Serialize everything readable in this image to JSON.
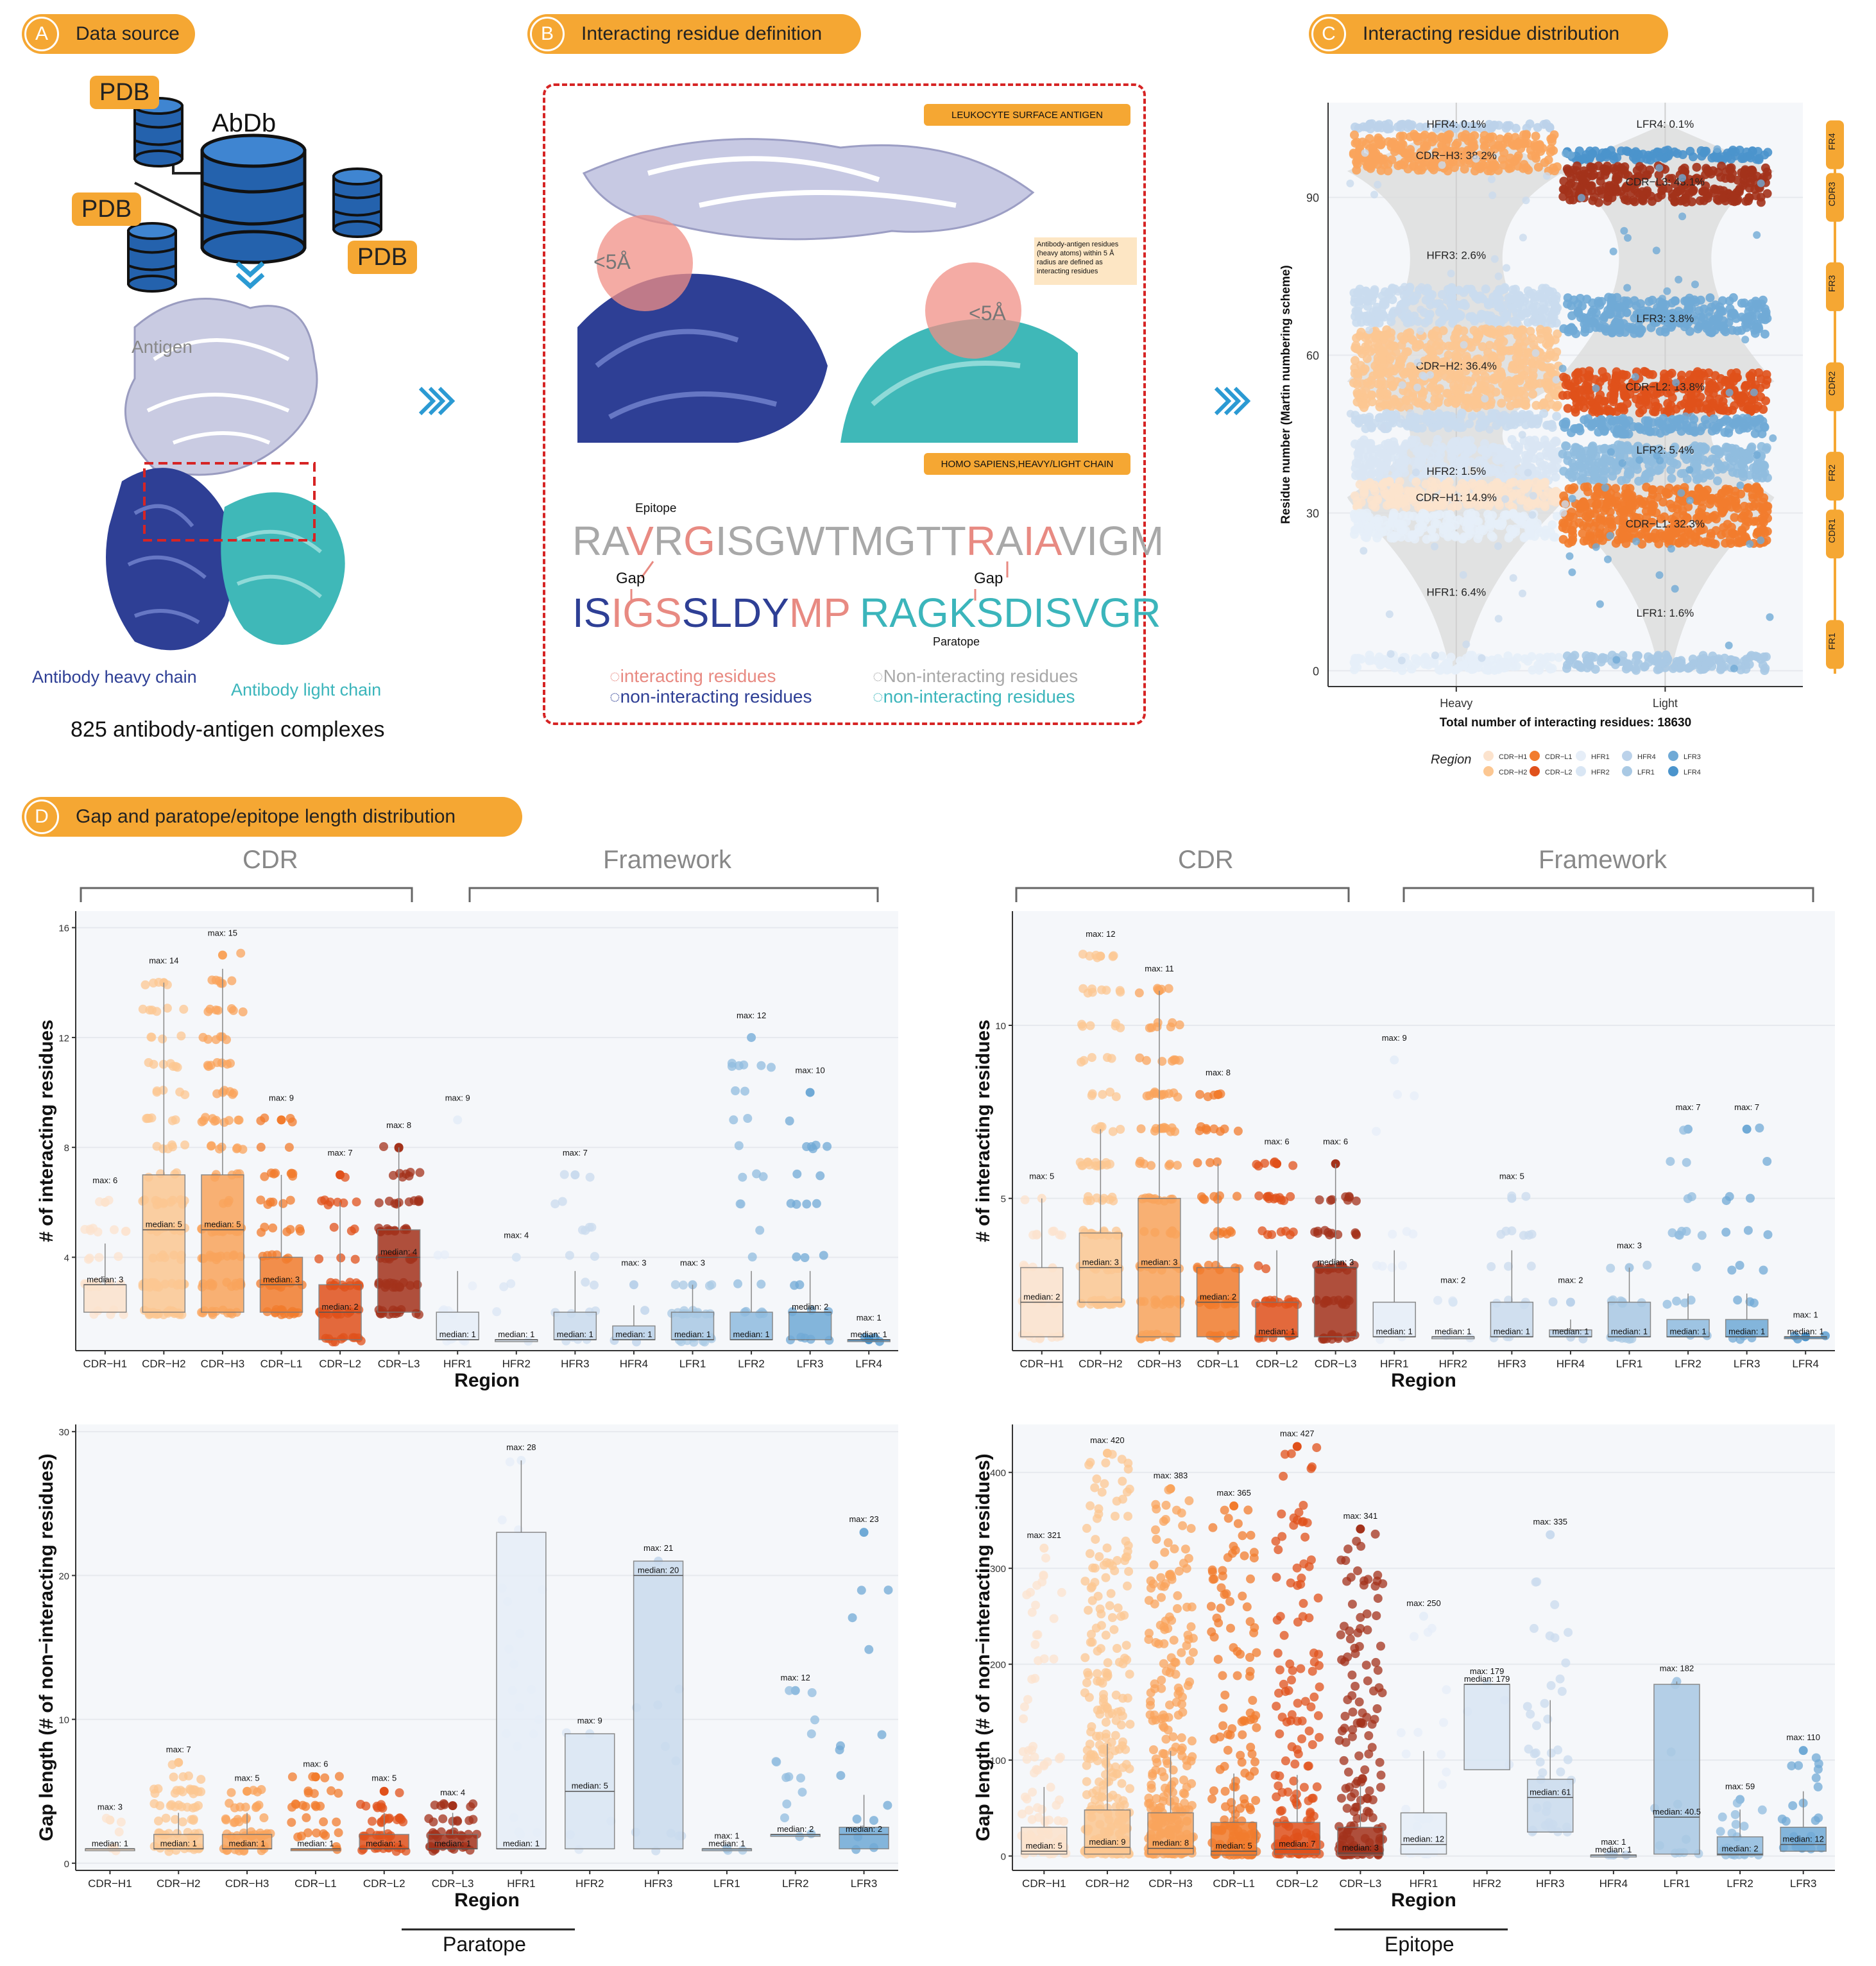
{
  "panel_a": {
    "badge_letter": "A",
    "badge_label": "Data source",
    "pdb_label": "PDB",
    "abdb_label": "AbDb",
    "antigen_label": "Antigen",
    "heavy_label": "Antibody heavy chain",
    "light_label": "Antibody light chain",
    "caption": "825 antibody-antigen complexes"
  },
  "panel_b": {
    "badge_letter": "B",
    "badge_label": "Interacting residue definition",
    "tag_top": "LEUKOCYTE SURFACE ANTIGEN",
    "tag_bottom": "HOMO SAPIENS,HEAVY/LIGHT CHAIN",
    "radius_label": "<5Å",
    "note": "Antibody-antigen residues (heavy atoms) within 5 Å radius are defined as interacting residues",
    "epitope_label": "Epitope",
    "gap_label": "Gap",
    "paratope_label": "Paratope",
    "antigen_seq": [
      {
        "t": "RA",
        "c": "#a8a8a8"
      },
      {
        "t": "V",
        "c": "#e88a82"
      },
      {
        "t": "R",
        "c": "#a8a8a8"
      },
      {
        "t": "G",
        "c": "#e88a82"
      },
      {
        "t": "ISGWTMGTT",
        "c": "#a8a8a8"
      },
      {
        "t": "R",
        "c": "#e88a82"
      },
      {
        "t": "A",
        "c": "#a8a8a8"
      },
      {
        "t": "I",
        "c": "#e88a82"
      },
      {
        "t": "A",
        "c": "#e88a82"
      },
      {
        "t": "VIGM",
        "c": "#a8a8a8"
      }
    ],
    "heavy_seq": [
      {
        "t": "IS",
        "c": "#2e3f95"
      },
      {
        "t": "IG",
        "c": "#e88a82"
      },
      {
        "t": "S",
        "c": "#e88a82"
      },
      {
        "t": "SLDY",
        "c": "#2e3f95"
      },
      {
        "t": "MP",
        "c": "#e88a82"
      }
    ],
    "light_seq": [
      {
        "t": "RAGKS",
        "c": "#3bb5bb"
      },
      {
        "t": "DISVGR",
        "c": "#3bb5bb"
      }
    ],
    "legend": [
      {
        "label": "interacting residues",
        "color": "#e88a82"
      },
      {
        "label": "non-interacting residues",
        "color": "#2e3f95"
      },
      {
        "label": "Non-interacting residues",
        "color": "#a8a8a8"
      },
      {
        "label": "non-interacting residues",
        "color": "#3bb5bb"
      }
    ]
  },
  "panel_c": {
    "badge_letter": "C",
    "badge_label": "Interacting residue distribution"
  },
  "panel_d": {
    "badge_letter": "D",
    "badge_label": "Gap and paratope/epitope length distribution",
    "cdr_header": "CDR",
    "framework_header": "Framework",
    "paratope_label": "Paratope",
    "epitope_label": "Epitope"
  },
  "colors": {
    "CDR-H1": "#fce3cd",
    "CDR-H2": "#fcc792",
    "CDR-H3": "#f9a45c",
    "CDR-L1": "#f27c2d",
    "CDR-L2": "#e0511b",
    "CDR-L3": "#a3321b",
    "HFR1": "#e6eef8",
    "HFR2": "#d9e6f4",
    "HFR3": "#cadbee",
    "HFR4": "#bbd2ea",
    "LFR1": "#a9c9e4",
    "LFR2": "#90bcdf",
    "LFR3": "#70aad6",
    "LFR4": "#4b94cc"
  },
  "chart_data": [
    {
      "type": "scatter",
      "id": "C",
      "title": "",
      "xlabel": "Total number of interacting residues: 18630",
      "ylabel": "Residue number (Martin numbering scheme)",
      "categories": [
        "Heavy",
        "Light"
      ],
      "ylim": [
        -3,
        108
      ],
      "yticks": [
        0,
        30,
        60,
        90
      ],
      "legend_title": "Region",
      "legend_position": "bottom",
      "legend_entries": [
        "CDR−H1",
        "CDR−H2",
        "CDR−H3",
        "CDR−L1",
        "CDR−L2",
        "CDR−L3",
        "HFR1",
        "HFR2",
        "HFR3",
        "HFR4",
        "LFR1",
        "LFR2",
        "LFR3",
        "LFR4"
      ],
      "side_labels": [
        "FR4",
        "CDR3",
        "FR3",
        "CDR2",
        "FR2",
        "CDR1",
        "FR1"
      ],
      "bands": [
        {
          "chain": "Heavy",
          "region": "HFR4",
          "y0": 103,
          "y1": 104,
          "label": "HFR4: 0.1%",
          "label_y": 104
        },
        {
          "chain": "Heavy",
          "region": "CDR-H3",
          "y0": 95,
          "y1": 102,
          "label": "CDR−H3: 38.2%",
          "label_y": 98
        },
        {
          "chain": "Heavy",
          "region": "HFR3",
          "y0": 66,
          "y1": 73,
          "label": "HFR3: 2.6%",
          "label_y": 79
        },
        {
          "chain": "Heavy",
          "region": "CDR-H2",
          "y0": 50,
          "y1": 65,
          "label": "CDR−H2: 36.4%",
          "label_y": 58
        },
        {
          "chain": "Heavy",
          "region": "HFR3",
          "y0": 46,
          "y1": 49,
          "label": "",
          "label_y": 0
        },
        {
          "chain": "Heavy",
          "region": "HFR2",
          "y0": 36,
          "y1": 44,
          "label": "HFR2: 1.5%",
          "label_y": 38
        },
        {
          "chain": "Heavy",
          "region": "CDR-H1",
          "y0": 31,
          "y1": 36,
          "label": "CDR−H1: 14.9%",
          "label_y": 33
        },
        {
          "chain": "Heavy",
          "region": "HFR1",
          "y0": 25,
          "y1": 30,
          "label": "HFR1: 6.4%",
          "label_y": 15
        },
        {
          "chain": "Heavy",
          "region": "HFR1",
          "y0": 0,
          "y1": 3,
          "label": "",
          "label_y": 0
        },
        {
          "chain": "Light",
          "region": "LFR4",
          "y0": 97,
          "y1": 99,
          "label": "LFR4: 0.1%",
          "label_y": 104
        },
        {
          "chain": "Light",
          "region": "CDR-L3",
          "y0": 89,
          "y1": 96,
          "label": "CDR−L3: 43.1%",
          "label_y": 93
        },
        {
          "chain": "Light",
          "region": "LFR3",
          "y0": 64,
          "y1": 71,
          "label": "LFR3: 3.8%",
          "label_y": 67
        },
        {
          "chain": "Light",
          "region": "CDR-L2",
          "y0": 49,
          "y1": 57,
          "label": "CDR−L2: 13.8%",
          "label_y": 54
        },
        {
          "chain": "Light",
          "region": "LFR3",
          "y0": 45,
          "y1": 48,
          "label": "",
          "label_y": 0
        },
        {
          "chain": "Light",
          "region": "LFR2",
          "y0": 36,
          "y1": 43,
          "label": "LFR2: 5.4%",
          "label_y": 42
        },
        {
          "chain": "Light",
          "region": "CDR-L1",
          "y0": 24,
          "y1": 35,
          "label": "CDR−L1: 32.3%",
          "label_y": 28
        },
        {
          "chain": "Light",
          "region": "LFR1",
          "y0": 0,
          "y1": 3,
          "label": "LFR1: 1.6%",
          "label_y": 11
        }
      ]
    },
    {
      "type": "box",
      "id": "D-paratope-count",
      "xlabel": "Region",
      "ylabel": "# of interacting residues",
      "ylim": [
        0.6,
        16.6
      ],
      "yticks": [
        4,
        8,
        12,
        16
      ],
      "categories": [
        "CDR−H1",
        "CDR−H2",
        "CDR−H3",
        "CDR−L1",
        "CDR−L2",
        "CDR−L3",
        "HFR1",
        "HFR2",
        "HFR3",
        "HFR4",
        "LFR1",
        "LFR2",
        "LFR3",
        "LFR4"
      ],
      "keys": [
        "CDR-H1",
        "CDR-H2",
        "CDR-H3",
        "CDR-L1",
        "CDR-L2",
        "CDR-L3",
        "HFR1",
        "HFR2",
        "HFR3",
        "HFR4",
        "LFR1",
        "LFR2",
        "LFR3",
        "LFR4"
      ],
      "median": [
        3,
        5,
        5,
        3,
        2,
        4,
        1,
        1,
        1,
        1,
        1,
        1,
        2,
        1
      ],
      "q1": [
        2,
        2,
        2,
        2,
        1,
        2,
        1,
        1,
        1,
        1,
        1,
        1,
        1,
        1
      ],
      "q3": [
        3,
        7,
        7,
        4,
        3,
        5,
        2,
        1,
        2,
        1.5,
        2,
        2,
        2,
        1
      ],
      "max": [
        6,
        14,
        15,
        9,
        7,
        8,
        9,
        4,
        7,
        3,
        3,
        12,
        10,
        1
      ]
    },
    {
      "type": "box",
      "id": "D-epitope-count",
      "xlabel": "Region",
      "ylabel": "# of interacting residues",
      "ylim": [
        0.6,
        13.3
      ],
      "yticks": [
        5,
        10
      ],
      "categories": [
        "CDR−H1",
        "CDR−H2",
        "CDR−H3",
        "CDR−L1",
        "CDR−L2",
        "CDR−L3",
        "HFR1",
        "HFR2",
        "HFR3",
        "HFR4",
        "LFR1",
        "LFR2",
        "LFR3",
        "LFR4"
      ],
      "keys": [
        "CDR-H1",
        "CDR-H2",
        "CDR-H3",
        "CDR-L1",
        "CDR-L2",
        "CDR-L3",
        "HFR1",
        "HFR2",
        "HFR3",
        "HFR4",
        "LFR1",
        "LFR2",
        "LFR3",
        "LFR4"
      ],
      "median": [
        2,
        3,
        3,
        2,
        1,
        3,
        1,
        1,
        1,
        1,
        1,
        1,
        1,
        1
      ],
      "q1": [
        1,
        2,
        1,
        1,
        1,
        1,
        1,
        1,
        1,
        1,
        1,
        1,
        1,
        1
      ],
      "q3": [
        3,
        4,
        5,
        3,
        2,
        3,
        2,
        1,
        2,
        1.2,
        2,
        1.5,
        1.5,
        1
      ],
      "max": [
        5,
        12,
        11,
        8,
        6,
        6,
        9,
        2,
        5,
        2,
        3,
        7,
        7,
        1
      ]
    },
    {
      "type": "box",
      "id": "D-paratope-gap",
      "xlabel": "Region",
      "ylabel": "Gap length (# of non−interacting residues)",
      "ylim": [
        -0.5,
        30.5
      ],
      "yticks": [
        0,
        10,
        20,
        30
      ],
      "categories": [
        "CDR−H1",
        "CDR−H2",
        "CDR−H3",
        "CDR−L1",
        "CDR−L2",
        "CDR−L3",
        "HFR1",
        "HFR2",
        "HFR3",
        "LFR1",
        "LFR2",
        "LFR3"
      ],
      "keys": [
        "CDR-H1",
        "CDR-H2",
        "CDR-H3",
        "CDR-L1",
        "CDR-L2",
        "CDR-L3",
        "HFR1",
        "HFR2",
        "HFR3",
        "LFR1",
        "LFR2",
        "LFR3"
      ],
      "median": [
        1,
        1,
        1,
        1,
        1,
        1,
        1,
        5,
        20,
        1,
        2,
        2
      ],
      "median_label": [
        "1",
        "1",
        "1",
        "1",
        "1",
        "1",
        "1",
        "5",
        "20",
        "1",
        "2",
        "2"
      ],
      "q1": [
        1,
        1,
        1,
        1,
        1,
        1,
        1,
        1,
        1,
        1,
        2,
        1
      ],
      "q3": [
        1,
        2,
        2,
        1,
        2,
        2,
        23,
        9,
        21,
        1,
        2,
        2.5
      ],
      "max": [
        3,
        7,
        5,
        6,
        5,
        4,
        28,
        9,
        21,
        1,
        12,
        23
      ]
    },
    {
      "type": "box",
      "id": "D-epitope-gap",
      "xlabel": "Region",
      "ylabel": "Gap length (# of non−interacting residues)",
      "ylim": [
        -15,
        450
      ],
      "yticks": [
        0,
        100,
        200,
        300,
        400
      ],
      "categories": [
        "CDR−H1",
        "CDR−H2",
        "CDR−H3",
        "CDR−L1",
        "CDR−L2",
        "CDR−L3",
        "HFR1",
        "HFR2",
        "HFR3",
        "HFR4",
        "LFR1",
        "LFR2",
        "LFR3"
      ],
      "keys": [
        "CDR-H1",
        "CDR-H2",
        "CDR-H3",
        "CDR-L1",
        "CDR-L2",
        "CDR-L3",
        "HFR1",
        "HFR2",
        "HFR3",
        "HFR4",
        "LFR1",
        "LFR2",
        "LFR3"
      ],
      "median": [
        5,
        9,
        8,
        5,
        7,
        3,
        12,
        179,
        61,
        1,
        40.5,
        2,
        12
      ],
      "median_label": [
        "5",
        "9",
        "8",
        "5",
        "7",
        "3",
        "12",
        "179",
        "61",
        "1",
        "40.5",
        "2",
        "12"
      ],
      "q1": [
        2,
        2,
        2,
        1,
        2,
        1,
        2,
        90,
        25,
        1,
        2,
        1,
        5
      ],
      "q3": [
        30,
        48,
        45,
        35,
        35,
        30,
        45,
        179,
        80,
        1,
        179,
        20,
        30
      ],
      "max": [
        321,
        420,
        383,
        365,
        427,
        341,
        250,
        179,
        335,
        1,
        182,
        59,
        110
      ]
    }
  ]
}
